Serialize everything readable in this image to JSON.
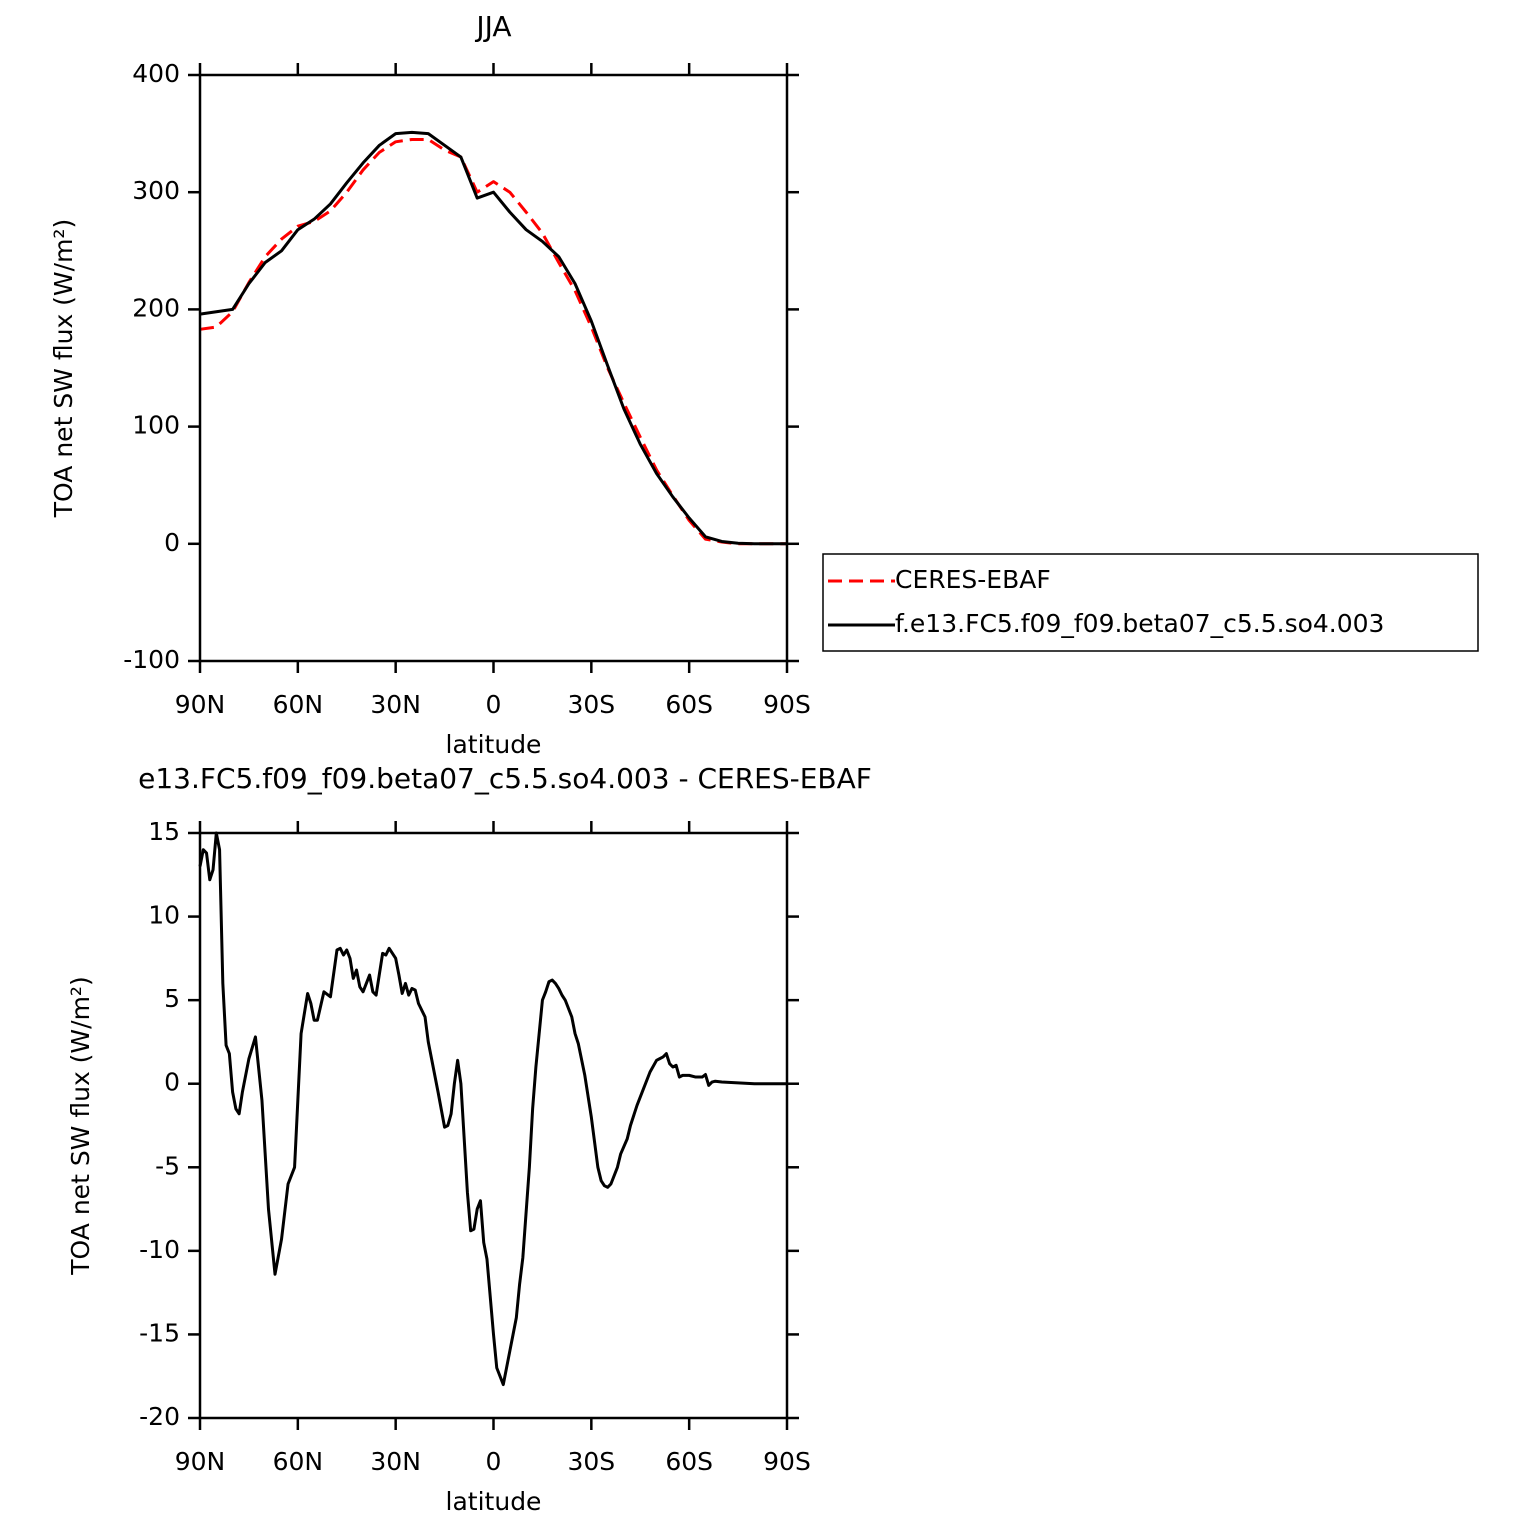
{
  "chart_data": [
    {
      "type": "line",
      "title": "JJA",
      "x_label": "latitude",
      "y_label": "TOA net SW flux (W/m²)",
      "x": [
        90,
        85,
        80,
        75,
        70,
        65,
        60,
        55,
        50,
        45,
        40,
        35,
        30,
        25,
        20,
        15,
        10,
        5,
        0,
        -5,
        -10,
        -15,
        -20,
        -25,
        -30,
        -35,
        -40,
        -45,
        -50,
        -55,
        -60,
        -65,
        -70,
        -75,
        -80,
        -85,
        -90
      ],
      "xlim": [
        90,
        -90
      ],
      "xticks": [
        {
          "value": 90,
          "label": "90N"
        },
        {
          "value": 60,
          "label": "60N"
        },
        {
          "value": 30,
          "label": "30N"
        },
        0,
        {
          "value": -30,
          "label": "30S"
        },
        {
          "value": -60,
          "label": "60S"
        },
        {
          "value": -90,
          "label": "90S"
        }
      ],
      "ylim": [
        -100,
        400
      ],
      "yticks": [
        -100,
        0,
        100,
        200,
        300,
        400
      ],
      "legend": "outside-right",
      "series": [
        {
          "name": "CERES-EBAF",
          "color": "#ff0000",
          "dash": true,
          "values": [
            183,
            185,
            198,
            223,
            245,
            260,
            271,
            275,
            284,
            300,
            319,
            334,
            343,
            345,
            345,
            336,
            330,
            300,
            309,
            300,
            283,
            265,
            240,
            216,
            185,
            150,
            120,
            91,
            63,
            41,
            20,
            4,
            1.5,
            0,
            0,
            0,
            0
          ]
        },
        {
          "name": "f.e13.FC5.f09_f09.beta07_c5.5.so4.003",
          "color": "#000000",
          "dash": false,
          "values": [
            196,
            198,
            200,
            222,
            240,
            250,
            268,
            277,
            290,
            308,
            325,
            340,
            350,
            351,
            350,
            340,
            330,
            295,
            300,
            283,
            268,
            258,
            245,
            222,
            190,
            152,
            115,
            85,
            60,
            40,
            22,
            6,
            2,
            0.5,
            0,
            0,
            0
          ]
        }
      ]
    },
    {
      "type": "line",
      "title": "e13.FC5.f09_f09.beta07_c5.5.so4.003 - CERES-EBAF",
      "x_label": "latitude",
      "y_label": "TOA net SW flux (W/m²)",
      "x": [
        90,
        89,
        88,
        87,
        86,
        85,
        84,
        83,
        82,
        81,
        80,
        79,
        78,
        77,
        75,
        73,
        71,
        69,
        67,
        65,
        63,
        61,
        60,
        59,
        57,
        56,
        55,
        54,
        52,
        50,
        48,
        47,
        46,
        45,
        44,
        43,
        42,
        41,
        40,
        38,
        37,
        36,
        34,
        33,
        32,
        30,
        29,
        28,
        27,
        26,
        25,
        24,
        23,
        21,
        20,
        17,
        15,
        14,
        13,
        12,
        11,
        10,
        8,
        7,
        6,
        5,
        4,
        3,
        2,
        0,
        -1,
        -3,
        -4,
        -5,
        -6,
        -7,
        -8,
        -9,
        -11,
        -12,
        -13,
        -15,
        -16,
        -17,
        -18,
        -19,
        -20,
        -21,
        -22,
        -24,
        -25,
        -26,
        -28,
        -30,
        -32,
        -33,
        -34,
        -35,
        -36,
        -38,
        -39,
        -41,
        -42,
        -44,
        -46,
        -48,
        -50,
        -51,
        -52,
        -53,
        -54,
        -55,
        -56,
        -57,
        -58,
        -60,
        -62,
        -64,
        -65,
        -66,
        -67,
        -68,
        -70,
        -75,
        -80,
        -85,
        -90
      ],
      "xlim": [
        90,
        -90
      ],
      "xticks": [
        {
          "value": 90,
          "label": "90N"
        },
        {
          "value": 60,
          "label": "60N"
        },
        {
          "value": 30,
          "label": "30N"
        },
        0,
        {
          "value": -30,
          "label": "30S"
        },
        {
          "value": -60,
          "label": "60S"
        },
        {
          "value": -90,
          "label": "90S"
        }
      ],
      "ylim": [
        -20,
        15
      ],
      "yticks": [
        -20,
        -15,
        -10,
        -5,
        0,
        5,
        10,
        15
      ],
      "series": [
        {
          "color": "#000000",
          "dash": false,
          "values": [
            13,
            14,
            13.8,
            12.2,
            12.8,
            15,
            14,
            6,
            2.3,
            1.8,
            -0.5,
            -1.5,
            -1.8,
            -0.5,
            1.5,
            2.8,
            -1,
            -7.5,
            -11.4,
            -9.3,
            -6,
            -5,
            -1,
            3,
            5.4,
            4.8,
            3.8,
            3.8,
            5.5,
            5.2,
            8,
            8.1,
            7.7,
            8,
            7.5,
            6.3,
            6.8,
            5.8,
            5.5,
            6.5,
            5.5,
            5.3,
            7.8,
            7.7,
            8.1,
            7.5,
            6.5,
            5.4,
            6,
            5.3,
            5.7,
            5.6,
            4.8,
            4,
            2.5,
            -0.5,
            -2.6,
            -2.5,
            -1.8,
            0,
            1.4,
            0,
            -6.5,
            -8.8,
            -8.7,
            -7.5,
            -7,
            -9.5,
            -10.5,
            -15,
            -17,
            -18,
            -17,
            -16,
            -15,
            -14,
            -12,
            -10.4,
            -5,
            -1.5,
            1,
            5,
            5.5,
            6.1,
            6.2,
            6,
            5.7,
            5.3,
            5,
            4,
            3,
            2.4,
            0.5,
            -2,
            -5,
            -5.8,
            -6.1,
            -6.2,
            -6,
            -5,
            -4.2,
            -3.3,
            -2.5,
            -1.3,
            -0.3,
            0.7,
            1.4,
            1.5,
            1.6,
            1.8,
            1.2,
            1,
            1.1,
            0.4,
            0.5,
            0.5,
            0.4,
            0.4,
            0.55,
            -0.1,
            0.1,
            0.15,
            0.1,
            0.05,
            0,
            0,
            0
          ]
        }
      ]
    }
  ]
}
